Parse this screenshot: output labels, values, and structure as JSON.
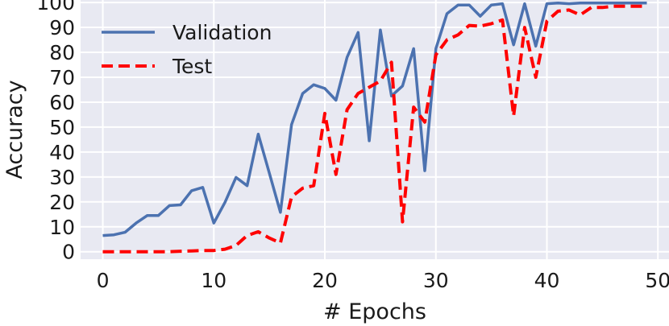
{
  "chart_data": {
    "type": "line",
    "title": "",
    "xlabel": "# Epochs",
    "ylabel": "Accuracy",
    "xlim": [
      -2,
      51
    ],
    "ylim": [
      -3,
      101
    ],
    "xticks": [
      0,
      10,
      20,
      30,
      40,
      50
    ],
    "yticks": [
      0,
      10,
      20,
      30,
      40,
      50,
      60,
      70,
      80,
      90,
      100
    ],
    "grid": true,
    "legend_position": "upper-left",
    "background": "#e8e9f2",
    "series": [
      {
        "name": "Validation",
        "color": "#4c72b0",
        "style": "solid",
        "x": [
          0,
          1,
          2,
          3,
          4,
          5,
          6,
          7,
          8,
          9,
          10,
          11,
          12,
          13,
          14,
          15,
          16,
          17,
          18,
          19,
          20,
          21,
          22,
          23,
          24,
          25,
          26,
          27,
          28,
          29,
          30,
          31,
          32,
          33,
          34,
          35,
          36,
          37,
          38,
          39,
          40,
          41,
          42,
          43,
          44,
          45,
          46,
          47,
          48,
          49
        ],
        "values": [
          6.5,
          6.8,
          7.8,
          11.5,
          14.5,
          14.5,
          18.5,
          18.8,
          24.5,
          25.8,
          11.5,
          19.8,
          29.8,
          26.5,
          47.2,
          31.5,
          15.8,
          51,
          63.5,
          67,
          65.5,
          60.8,
          78,
          88,
          44.5,
          89,
          62.5,
          66.5,
          81.5,
          32.5,
          81.5,
          95.5,
          99,
          99,
          94.5,
          99,
          99.5,
          83,
          99.5,
          82.5,
          99.5,
          99.8,
          99.5,
          99.8,
          99.8,
          99.8,
          99.8,
          99.8,
          99.8,
          99.8
        ]
      },
      {
        "name": "Test",
        "color": "#ff0000",
        "style": "dashed",
        "x": [
          0,
          1,
          2,
          3,
          4,
          5,
          6,
          7,
          8,
          9,
          10,
          11,
          12,
          13,
          14,
          15,
          16,
          17,
          18,
          19,
          20,
          21,
          22,
          23,
          24,
          25,
          26,
          27,
          28,
          29,
          30,
          31,
          32,
          33,
          34,
          35,
          36,
          37,
          38,
          39,
          40,
          41,
          42,
          43,
          44,
          45,
          46,
          47,
          48,
          49
        ],
        "values": [
          0,
          0,
          0,
          0,
          0,
          0,
          0,
          0.2,
          0.3,
          0.5,
          0.5,
          1,
          2.5,
          6.5,
          8,
          5.5,
          3.5,
          22,
          25.5,
          26.5,
          55.5,
          31,
          57,
          63.5,
          66,
          68.5,
          76,
          12,
          58,
          52,
          79,
          85,
          87,
          90.8,
          90.5,
          91.5,
          93,
          54.5,
          90,
          70,
          92.5,
          96.5,
          97,
          95,
          98,
          98,
          98.5,
          98.5,
          98.5,
          98.5
        ]
      }
    ]
  }
}
